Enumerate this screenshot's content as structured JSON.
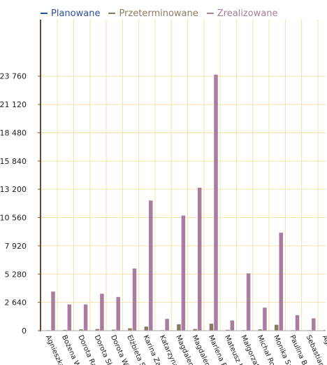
{
  "chart_data": {
    "type": "bar",
    "legend_position": "top-left",
    "grid": true,
    "ylim": [
      0,
      29040
    ],
    "yticks": [
      0,
      2640,
      5280,
      7920,
      10560,
      13200,
      15840,
      18480,
      21120,
      23760
    ],
    "ytick_labels": [
      "0",
      "2 640",
      "5 280",
      "7 920",
      "10 560",
      "13 200",
      "15 840",
      "18 480",
      "21 120",
      "23 760"
    ],
    "categories": [
      "Agnieszka",
      "Bożena W",
      "Dorota Ra",
      "Dorota Sł",
      "Dorota Wi",
      "Elżbieta Sz",
      "Karina Zar",
      "Katarzyna",
      "Magdalena",
      "Magdalena",
      "Marlena B",
      "Mateusz K",
      "Małgorzat",
      "Michał Ro",
      "Monika Sz",
      "Paulina Br",
      "Sebastian",
      "Agn"
    ],
    "series": [
      {
        "name": "Planowane",
        "color": "#2f4f9f",
        "values": [
          0,
          0,
          0,
          0,
          0,
          0,
          0,
          0,
          0,
          0,
          0,
          0,
          0,
          0,
          0,
          0,
          0,
          0
        ]
      },
      {
        "name": "Przeterminowane",
        "color": "#8c7a60",
        "values": [
          50,
          80,
          120,
          150,
          100,
          220,
          380,
          50,
          600,
          150,
          650,
          80,
          50,
          120,
          550,
          50,
          50,
          60
        ]
      },
      {
        "name": "Zrealizowane",
        "color": "#a87d9e",
        "values": [
          3650,
          2450,
          2450,
          3450,
          3150,
          5800,
          12150,
          1100,
          10750,
          13350,
          23900,
          950,
          5350,
          2150,
          9150,
          1450,
          1150,
          50
        ]
      }
    ]
  }
}
